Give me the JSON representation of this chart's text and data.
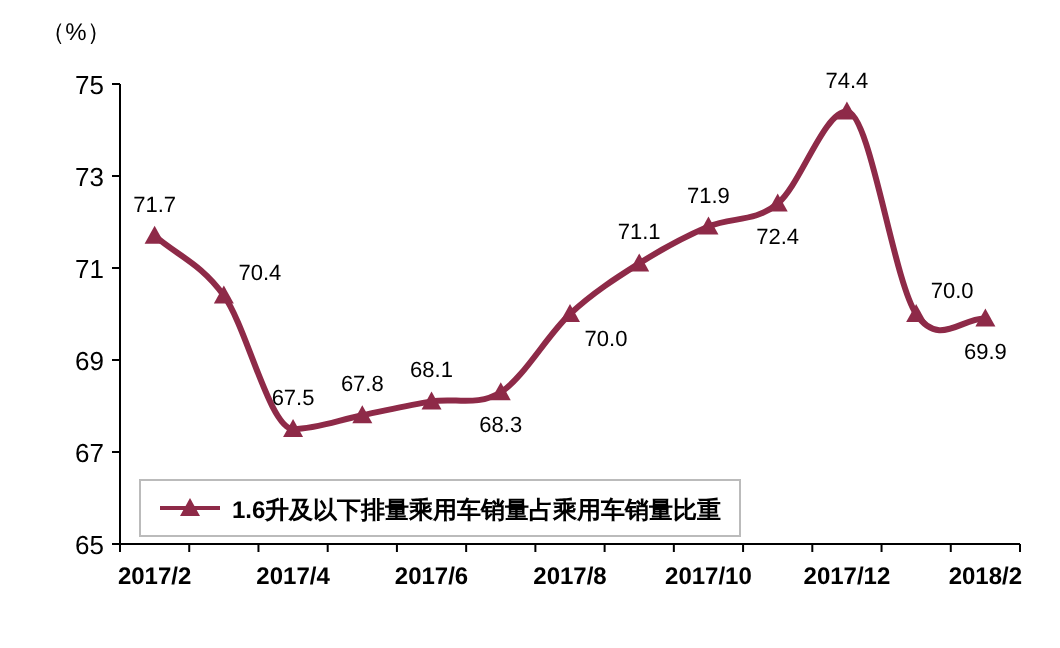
{
  "chart_data": {
    "type": "line",
    "ylabel": "（%）",
    "categories": [
      "2017/2",
      null,
      "2017/4",
      null,
      "2017/6",
      null,
      "2017/8",
      null,
      "2017/10",
      null,
      "2017/12",
      null,
      "2018/2"
    ],
    "series": [
      {
        "name": "1.6升及以下排量乘用车销量占乘用车销量比重",
        "color": "#8e2a48",
        "values": [
          71.7,
          70.4,
          67.5,
          67.8,
          68.1,
          68.3,
          70.0,
          71.1,
          71.9,
          72.4,
          74.4,
          70.0,
          69.9
        ],
        "value_labels": [
          "71.7",
          "70.4",
          "67.5",
          "67.8",
          "68.1",
          "68.3",
          "70.0",
          "71.1",
          "71.9",
          "72.4",
          "74.4",
          "70.0",
          "69.9"
        ]
      }
    ],
    "ylim": [
      65,
      75
    ],
    "yticks": [
      65,
      67,
      69,
      71,
      73,
      75
    ],
    "marker": "triangle",
    "line_style": "solid",
    "legend": "bottom left",
    "grid": false
  }
}
